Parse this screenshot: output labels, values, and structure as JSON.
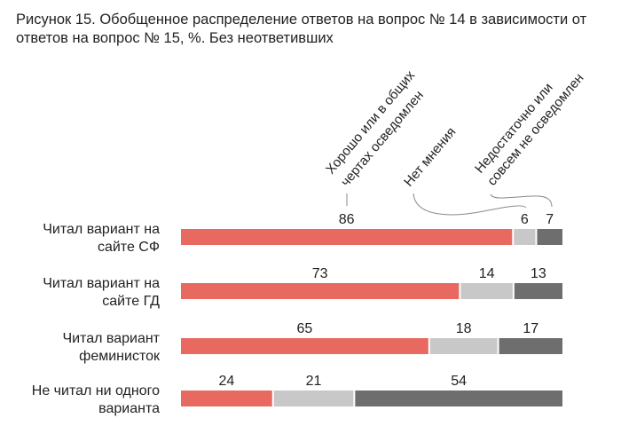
{
  "chart_data": {
    "type": "bar",
    "orientation": "horizontal",
    "stacked": true,
    "title_lines": [
      "Рисунок 15. Обобщенное распределение ответов на вопрос № 14 в зависимости от",
      "ответов на вопрос № 15, %. Без неответивших"
    ],
    "categories": [
      [
        "Читал вариант на",
        "сайте СФ"
      ],
      [
        "Читал вариант на",
        "сайте ГД"
      ],
      [
        "Читал вариант",
        "феминисток"
      ],
      [
        "Не читал ни одного",
        "варианта"
      ]
    ],
    "series": [
      {
        "name_lines": [
          "Хорошо или в общих",
          "чертах осведомлен"
        ],
        "color": "#e8695f",
        "values": [
          86,
          73,
          65,
          24
        ]
      },
      {
        "name_lines": [
          "Нет мнения"
        ],
        "color": "#c8c8c8",
        "values": [
          6,
          14,
          18,
          21
        ]
      },
      {
        "name_lines": [
          "Недостаточно или",
          "совсем не осведомлен"
        ],
        "color": "#6e6e6e",
        "values": [
          7,
          13,
          17,
          54
        ]
      }
    ],
    "legend_placement": "top, rotated labels with leader lines",
    "grid": false
  }
}
